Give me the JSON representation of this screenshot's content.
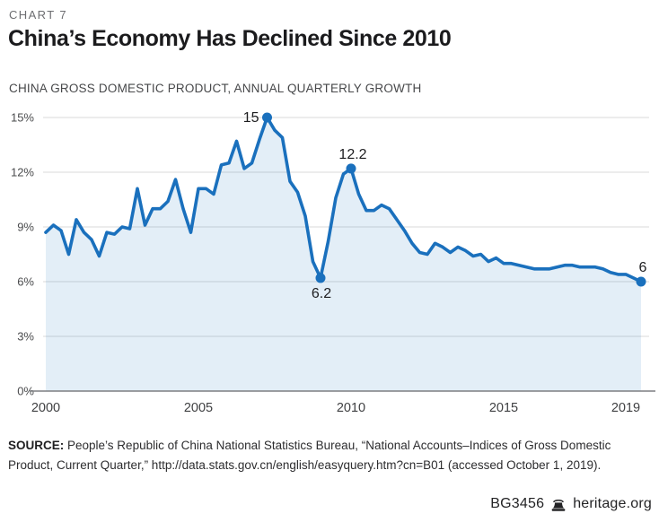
{
  "header": {
    "chart_label": "CHART 7",
    "title": "China’s Economy Has Declined Since 2010",
    "subtitle": "CHINA GROSS DOMESTIC PRODUCT, ANNUAL QUARTERLY GROWTH"
  },
  "chart_data": {
    "type": "area",
    "title": "China’s Economy Has Declined Since 2010",
    "subtitle": "CHINA GROSS DOMESTIC PRODUCT, ANNUAL QUARTERLY GROWTH",
    "x_start_year": 2000,
    "x_start_quarter": 1,
    "frequency": "quarterly",
    "x_end_label": "2019 Q3",
    "series": [
      {
        "name": "China GDP growth, annual quarterly (%)",
        "values": [
          8.7,
          9.1,
          8.8,
          7.5,
          9.4,
          8.7,
          8.3,
          7.4,
          8.7,
          8.6,
          9.0,
          8.9,
          11.1,
          9.1,
          10.0,
          10.0,
          10.4,
          11.6,
          10.0,
          8.7,
          11.1,
          11.1,
          10.8,
          12.4,
          12.5,
          13.7,
          12.2,
          12.5,
          13.8,
          15.0,
          14.3,
          13.9,
          11.5,
          10.9,
          9.6,
          7.1,
          6.2,
          8.2,
          10.6,
          11.9,
          12.2,
          10.8,
          9.9,
          9.9,
          10.2,
          10.0,
          9.4,
          8.8,
          8.1,
          7.6,
          7.5,
          8.1,
          7.9,
          7.6,
          7.9,
          7.7,
          7.4,
          7.5,
          7.1,
          7.3,
          7.0,
          7.0,
          6.9,
          6.8,
          6.7,
          6.7,
          6.7,
          6.8,
          6.9,
          6.9,
          6.8,
          6.8,
          6.8,
          6.7,
          6.5,
          6.4,
          6.4,
          6.2,
          6.0
        ]
      }
    ],
    "x_tick_labels": [
      "2000",
      "2005",
      "2010",
      "2015",
      "2019"
    ],
    "x_tick_years": [
      2000,
      2005,
      2010,
      2015,
      2019
    ],
    "y_tick_labels": [
      "0%",
      "3%",
      "6%",
      "9%",
      "12%",
      "15%"
    ],
    "y_ticks": [
      0,
      3,
      6,
      9,
      12,
      15
    ],
    "ylim": [
      0,
      15
    ],
    "grid": true,
    "legend": false,
    "annotations": [
      {
        "label": "15",
        "year": 2007,
        "quarter": 2,
        "value": 15.0,
        "placement": "left"
      },
      {
        "label": "6.2",
        "year": 2009,
        "quarter": 1,
        "value": 6.2,
        "placement": "below"
      },
      {
        "label": "12.2",
        "year": 2010,
        "quarter": 1,
        "value": 12.2,
        "placement": "above"
      },
      {
        "label": "6",
        "year": 2019,
        "quarter": 3,
        "value": 6.0,
        "placement": "above"
      }
    ],
    "colors": {
      "line": "#1a70bd",
      "fill": "#e2e9f4",
      "grid": "#d9d9d9",
      "axis": "#7d7f82",
      "tick_text": "#4b4c4e",
      "annotation_text": "#1d1d1f"
    }
  },
  "source": {
    "label": "SOURCE:",
    "text": " People’s Republic of China National Statistics Bureau, “National Accounts–Indices of Gross Domestic Product, Current Quarter,” http://data.stats.gov.cn/english/easyquery.htm?cn=B01 (accessed October 1, 2019)."
  },
  "footer": {
    "doc_id": "BG3456",
    "site": "heritage.org",
    "logo": "heritage-bell-icon"
  }
}
